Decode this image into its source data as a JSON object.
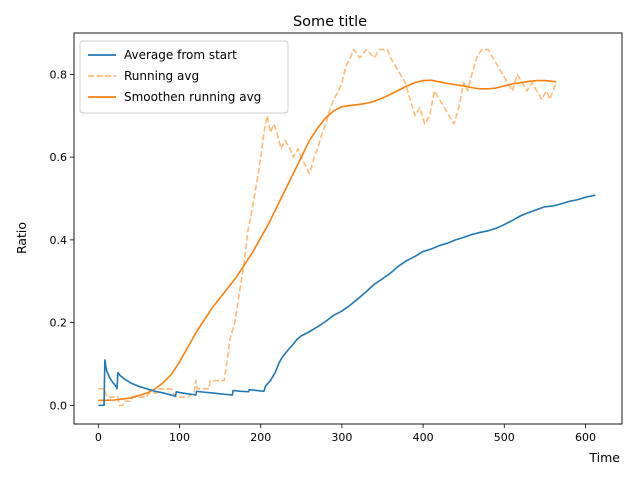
{
  "chart_data": {
    "type": "line",
    "title": "Some title",
    "xlabel": "Time",
    "ylabel": "Ratio",
    "xlim": [
      -30,
      645
    ],
    "ylim": [
      -0.045,
      0.9
    ],
    "xticks": [
      0,
      100,
      200,
      300,
      400,
      500,
      600
    ],
    "yticks": [
      0.0,
      0.2,
      0.4,
      0.6,
      0.8
    ],
    "grid": false,
    "legend_position": "upper-left",
    "series": [
      {
        "name": "Average from start",
        "color": "#1f77b4",
        "style": "solid",
        "points": [
          [
            0,
            0
          ],
          [
            5,
            0
          ],
          [
            7,
            0
          ],
          [
            8,
            0.11
          ],
          [
            10,
            0.085
          ],
          [
            14,
            0.066
          ],
          [
            18,
            0.055
          ],
          [
            22,
            0.045
          ],
          [
            23,
            0.04
          ],
          [
            24,
            0.079
          ],
          [
            27,
            0.072
          ],
          [
            32,
            0.064
          ],
          [
            40,
            0.054
          ],
          [
            50,
            0.046
          ],
          [
            60,
            0.04
          ],
          [
            70,
            0.034
          ],
          [
            80,
            0.03
          ],
          [
            90,
            0.025
          ],
          [
            95,
            0.022
          ],
          [
            96,
            0.033
          ],
          [
            100,
            0.031
          ],
          [
            110,
            0.028
          ],
          [
            118,
            0.026
          ],
          [
            120,
            0.025
          ],
          [
            121,
            0.034
          ],
          [
            130,
            0.032
          ],
          [
            140,
            0.03
          ],
          [
            150,
            0.028
          ],
          [
            160,
            0.026
          ],
          [
            165,
            0.025
          ],
          [
            166,
            0.036
          ],
          [
            175,
            0.034
          ],
          [
            185,
            0.033
          ],
          [
            186,
            0.038
          ],
          [
            195,
            0.036
          ],
          [
            204,
            0.034
          ],
          [
            206,
            0.047
          ],
          [
            212,
            0.06
          ],
          [
            218,
            0.08
          ],
          [
            222,
            0.1
          ],
          [
            226,
            0.115
          ],
          [
            232,
            0.13
          ],
          [
            240,
            0.148
          ],
          [
            245,
            0.16
          ],
          [
            250,
            0.168
          ],
          [
            260,
            0.178
          ],
          [
            270,
            0.19
          ],
          [
            280,
            0.203
          ],
          [
            290,
            0.218
          ],
          [
            300,
            0.228
          ],
          [
            310,
            0.242
          ],
          [
            320,
            0.258
          ],
          [
            330,
            0.275
          ],
          [
            340,
            0.293
          ],
          [
            350,
            0.306
          ],
          [
            360,
            0.32
          ],
          [
            370,
            0.337
          ],
          [
            380,
            0.35
          ],
          [
            390,
            0.36
          ],
          [
            400,
            0.372
          ],
          [
            410,
            0.378
          ],
          [
            420,
            0.386
          ],
          [
            430,
            0.392
          ],
          [
            440,
            0.4
          ],
          [
            450,
            0.406
          ],
          [
            460,
            0.413
          ],
          [
            470,
            0.418
          ],
          [
            480,
            0.422
          ],
          [
            490,
            0.428
          ],
          [
            500,
            0.437
          ],
          [
            510,
            0.447
          ],
          [
            520,
            0.458
          ],
          [
            530,
            0.466
          ],
          [
            540,
            0.473
          ],
          [
            550,
            0.48
          ],
          [
            560,
            0.482
          ],
          [
            570,
            0.487
          ],
          [
            580,
            0.493
          ],
          [
            590,
            0.497
          ],
          [
            600,
            0.503
          ],
          [
            612,
            0.508
          ]
        ]
      },
      {
        "name": "Running avg",
        "color": "#ffbb78",
        "style": "dashed",
        "points": [
          [
            0,
            0.04
          ],
          [
            8,
            0.04
          ],
          [
            10,
            0.02
          ],
          [
            24,
            0.02
          ],
          [
            26,
            0.0
          ],
          [
            30,
            0.0
          ],
          [
            32,
            0.01
          ],
          [
            40,
            0.01
          ],
          [
            42,
            0.02
          ],
          [
            60,
            0.02
          ],
          [
            62,
            0.03
          ],
          [
            72,
            0.03
          ],
          [
            74,
            0.04
          ],
          [
            90,
            0.04
          ],
          [
            92,
            0.03
          ],
          [
            96,
            0.02
          ],
          [
            110,
            0.02
          ],
          [
            118,
            0.03
          ],
          [
            120,
            0.06
          ],
          [
            122,
            0.04
          ],
          [
            136,
            0.04
          ],
          [
            138,
            0.06
          ],
          [
            155,
            0.06
          ],
          [
            158,
            0.1
          ],
          [
            162,
            0.16
          ],
          [
            168,
            0.2
          ],
          [
            172,
            0.25
          ],
          [
            176,
            0.3
          ],
          [
            180,
            0.35
          ],
          [
            184,
            0.42
          ],
          [
            190,
            0.48
          ],
          [
            196,
            0.55
          ],
          [
            200,
            0.6
          ],
          [
            204,
            0.66
          ],
          [
            208,
            0.7
          ],
          [
            212,
            0.66
          ],
          [
            216,
            0.68
          ],
          [
            220,
            0.66
          ],
          [
            225,
            0.62
          ],
          [
            230,
            0.64
          ],
          [
            236,
            0.62
          ],
          [
            240,
            0.6
          ],
          [
            246,
            0.62
          ],
          [
            250,
            0.6
          ],
          [
            255,
            0.58
          ],
          [
            260,
            0.56
          ],
          [
            266,
            0.6
          ],
          [
            270,
            0.62
          ],
          [
            276,
            0.66
          ],
          [
            280,
            0.68
          ],
          [
            286,
            0.72
          ],
          [
            290,
            0.74
          ],
          [
            296,
            0.76
          ],
          [
            300,
            0.78
          ],
          [
            305,
            0.82
          ],
          [
            310,
            0.84
          ],
          [
            315,
            0.86
          ],
          [
            322,
            0.84
          ],
          [
            330,
            0.86
          ],
          [
            340,
            0.84
          ],
          [
            346,
            0.86
          ],
          [
            356,
            0.86
          ],
          [
            360,
            0.84
          ],
          [
            366,
            0.82
          ],
          [
            372,
            0.8
          ],
          [
            378,
            0.78
          ],
          [
            384,
            0.74
          ],
          [
            390,
            0.7
          ],
          [
            396,
            0.72
          ],
          [
            402,
            0.68
          ],
          [
            408,
            0.7
          ],
          [
            414,
            0.76
          ],
          [
            420,
            0.74
          ],
          [
            426,
            0.72
          ],
          [
            432,
            0.7
          ],
          [
            438,
            0.68
          ],
          [
            444,
            0.72
          ],
          [
            450,
            0.78
          ],
          [
            455,
            0.76
          ],
          [
            460,
            0.8
          ],
          [
            466,
            0.84
          ],
          [
            472,
            0.86
          ],
          [
            480,
            0.86
          ],
          [
            486,
            0.84
          ],
          [
            492,
            0.82
          ],
          [
            498,
            0.8
          ],
          [
            504,
            0.78
          ],
          [
            510,
            0.76
          ],
          [
            516,
            0.8
          ],
          [
            522,
            0.78
          ],
          [
            528,
            0.76
          ],
          [
            534,
            0.78
          ],
          [
            540,
            0.76
          ],
          [
            546,
            0.74
          ],
          [
            552,
            0.76
          ],
          [
            556,
            0.74
          ],
          [
            560,
            0.76
          ],
          [
            564,
            0.78
          ]
        ]
      },
      {
        "name": "Smoothen running avg",
        "color": "#ff7f0e",
        "style": "solid",
        "points": [
          [
            0,
            0.012
          ],
          [
            20,
            0.013
          ],
          [
            40,
            0.018
          ],
          [
            60,
            0.03
          ],
          [
            70,
            0.04
          ],
          [
            80,
            0.055
          ],
          [
            90,
            0.075
          ],
          [
            100,
            0.105
          ],
          [
            110,
            0.14
          ],
          [
            120,
            0.175
          ],
          [
            130,
            0.205
          ],
          [
            140,
            0.235
          ],
          [
            150,
            0.26
          ],
          [
            160,
            0.285
          ],
          [
            170,
            0.31
          ],
          [
            180,
            0.34
          ],
          [
            190,
            0.37
          ],
          [
            200,
            0.405
          ],
          [
            210,
            0.44
          ],
          [
            220,
            0.48
          ],
          [
            230,
            0.52
          ],
          [
            240,
            0.56
          ],
          [
            250,
            0.6
          ],
          [
            260,
            0.64
          ],
          [
            270,
            0.67
          ],
          [
            280,
            0.695
          ],
          [
            290,
            0.712
          ],
          [
            300,
            0.722
          ],
          [
            310,
            0.725
          ],
          [
            320,
            0.727
          ],
          [
            330,
            0.73
          ],
          [
            340,
            0.735
          ],
          [
            350,
            0.743
          ],
          [
            360,
            0.752
          ],
          [
            370,
            0.762
          ],
          [
            380,
            0.772
          ],
          [
            390,
            0.78
          ],
          [
            400,
            0.785
          ],
          [
            410,
            0.786
          ],
          [
            420,
            0.782
          ],
          [
            430,
            0.778
          ],
          [
            440,
            0.775
          ],
          [
            450,
            0.772
          ],
          [
            460,
            0.768
          ],
          [
            470,
            0.765
          ],
          [
            480,
            0.765
          ],
          [
            490,
            0.767
          ],
          [
            500,
            0.772
          ],
          [
            510,
            0.777
          ],
          [
            520,
            0.78
          ],
          [
            530,
            0.783
          ],
          [
            540,
            0.785
          ],
          [
            550,
            0.785
          ],
          [
            564,
            0.782
          ]
        ]
      }
    ]
  }
}
